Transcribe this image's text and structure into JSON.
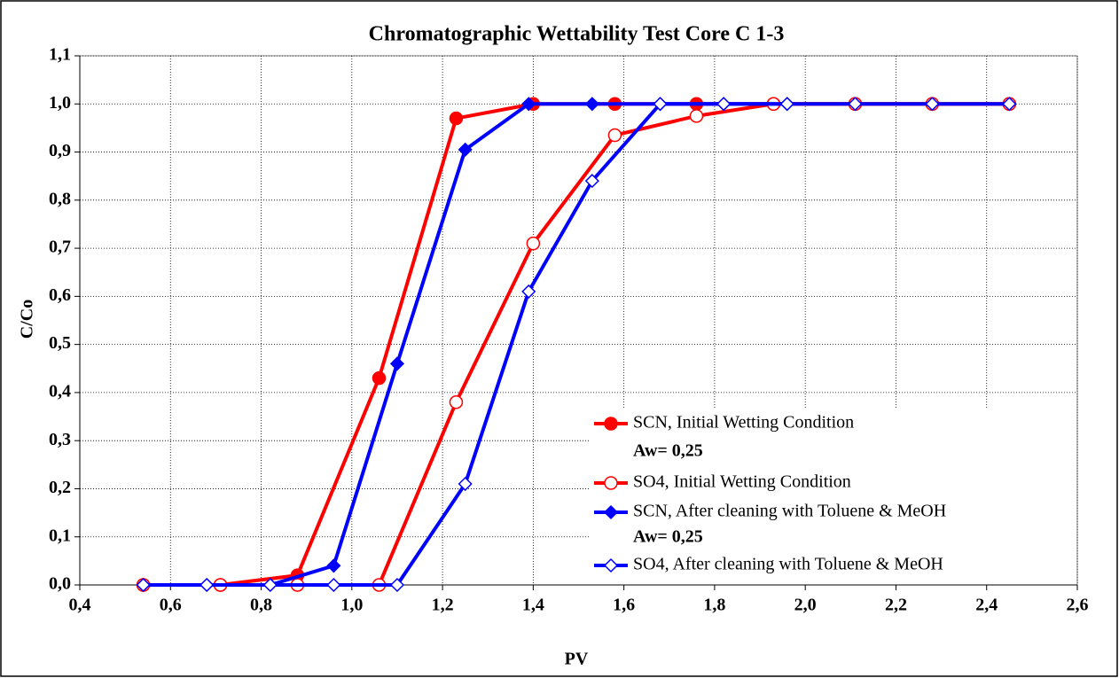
{
  "chart_data": {
    "type": "line",
    "title": "Chromatographic Wettability Test Core C 1-3",
    "x_label": "PV",
    "y_label": "C/Co",
    "xlim": [
      0.4,
      2.6
    ],
    "xticks": [
      {
        "value": 0.4,
        "label": "0,4"
      },
      {
        "value": 0.6,
        "label": "0,6"
      },
      {
        "value": 0.8,
        "label": "0,8"
      },
      {
        "value": 1.0,
        "label": "1,0"
      },
      {
        "value": 1.2,
        "label": "1,2"
      },
      {
        "value": 1.4,
        "label": "1,4"
      },
      {
        "value": 1.6,
        "label": "1,6"
      },
      {
        "value": 1.8,
        "label": "1,8"
      },
      {
        "value": 2.0,
        "label": "2,0"
      },
      {
        "value": 2.2,
        "label": "2,2"
      },
      {
        "value": 2.4,
        "label": "2,4"
      },
      {
        "value": 2.6,
        "label": "2,6"
      }
    ],
    "ylim": [
      0,
      1.1
    ],
    "yticks": [
      {
        "value": 0,
        "label": "0,0"
      },
      {
        "value": 0.1,
        "label": "0,1"
      },
      {
        "value": 0.2,
        "label": "0,2"
      },
      {
        "value": 0.3,
        "label": "0,3"
      },
      {
        "value": 0.4,
        "label": "0,4"
      },
      {
        "value": 0.5,
        "label": "0,5"
      },
      {
        "value": 0.6,
        "label": "0,6"
      },
      {
        "value": 0.7,
        "label": "0,7"
      },
      {
        "value": 0.8,
        "label": "0,8"
      },
      {
        "value": 0.9,
        "label": "0,9"
      },
      {
        "value": 1.0,
        "label": "1,0"
      },
      {
        "value": 1.1,
        "label": "1,1"
      }
    ],
    "grid": true,
    "legend": "lower right",
    "annotations": [
      "Aw= 0,25",
      "Aw= 0,25"
    ],
    "series": [
      {
        "name": "SCN, Initial Wetting Condition",
        "color": "#ff0000",
        "marker": "circle",
        "filled": true,
        "x": [
          0.54,
          0.71,
          0.88,
          1.06,
          1.23,
          1.4,
          1.58,
          1.76,
          1.93,
          2.11,
          2.28,
          2.45
        ],
        "values": [
          0,
          0,
          0.02,
          0.43,
          0.97,
          1.0,
          1.0,
          1.0,
          1.0,
          1.0,
          1.0,
          1.0
        ]
      },
      {
        "name": "SO4, Initial Wetting Condition",
        "color": "#ff0000",
        "marker": "circle",
        "filled": false,
        "x": [
          0.54,
          0.71,
          0.88,
          1.06,
          1.23,
          1.4,
          1.58,
          1.76,
          1.93,
          2.11,
          2.28,
          2.45
        ],
        "values": [
          0,
          0,
          0,
          0,
          0.38,
          0.71,
          0.935,
          0.975,
          1.0,
          1.0,
          1.0,
          1.0
        ]
      },
      {
        "name": "SCN, After cleaning with Toluene & MeOH",
        "color": "#0000ff",
        "marker": "diamond",
        "filled": true,
        "x": [
          0.54,
          0.68,
          0.82,
          0.96,
          1.1,
          1.25,
          1.39,
          1.53,
          1.68,
          1.82,
          1.96
        ],
        "values": [
          0,
          0,
          0,
          0.04,
          0.46,
          0.905,
          1.0,
          1.0,
          1.0,
          1.0,
          1.0
        ]
      },
      {
        "name": "SO4, After cleaning with Toluene & MeOH",
        "color": "#0000ff",
        "marker": "diamond",
        "filled": false,
        "x": [
          0.54,
          0.68,
          0.82,
          0.96,
          1.1,
          1.25,
          1.39,
          1.53,
          1.68,
          1.82,
          1.96,
          2.11,
          2.28,
          2.45
        ],
        "values": [
          0,
          0,
          0,
          0,
          0,
          0.21,
          0.61,
          0.84,
          1.0,
          1.0,
          1.0,
          1.0,
          1.0,
          1.0
        ]
      }
    ]
  }
}
